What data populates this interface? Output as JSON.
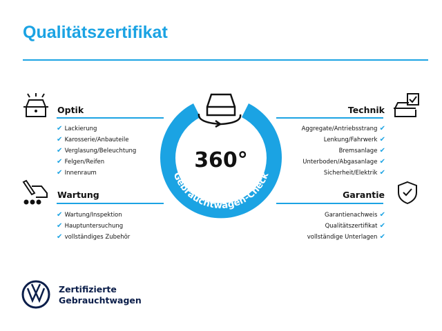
{
  "title": "Qualitätszertifikat",
  "center": {
    "label": "360°",
    "ring_text": "Gebrauchtwagen-Check",
    "accent": "#1ba3e3"
  },
  "sections": {
    "optik": {
      "heading": "Optik",
      "items": [
        "Lackierung",
        "Karosserie/Anbauteile",
        "Verglasung/Beleuchtung",
        "Felgen/Reifen",
        "Innenraum"
      ]
    },
    "wartung": {
      "heading": "Wartung",
      "items": [
        "Wartung/Inspektion",
        "Hauptuntersuchung",
        "vollständiges Zubehör"
      ]
    },
    "technik": {
      "heading": "Technik",
      "items": [
        "Aggregate/Antriebsstrang",
        "Lenkung/Fahrwerk",
        "Bremsanlage",
        "Unterboden/Abgasanlage",
        "Sicherheit/Elektrik"
      ]
    },
    "garantie": {
      "heading": "Garantie",
      "items": [
        "Garantienachweis",
        "Qualitätszertifikat",
        "vollständige Unterlagen"
      ]
    }
  },
  "brand": {
    "line1": "Zertifizierte",
    "line2": "Gebrauchtwagen",
    "logo": "VW"
  }
}
